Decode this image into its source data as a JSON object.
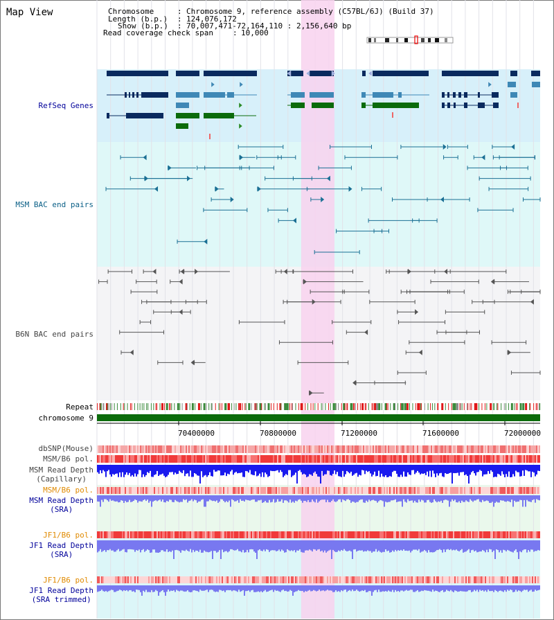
{
  "view_title": "Map View",
  "header": {
    "chromosome_key": "Chromosome",
    "chromosome_val": "Chromosome 9, reference assembly (C57BL/6J) (Build 37)",
    "length_key": "Length (b.p.)",
    "length_val": "124,076,172",
    "show_key": "Show (b.p.)",
    "show_val": "70,007,471-72,164,110 : 2,156,640 bp",
    "coverage_key": "Read coverage check span",
    "coverage_val": "10,000"
  },
  "tracks": {
    "refseq": "RefSeq Genes",
    "msm_bac": "MSM BAC end pairs",
    "b6n_bac": "B6N BAC end pairs",
    "repeat": "Repeat",
    "chromosome": "chromosome 9",
    "dbsnp": "dbSNP(Mouse)",
    "msm_b6_pol_1": "MSM/B6 pol.",
    "msm_depth_cap": "MSM Read Depth\n(Capillary)",
    "msm_b6_pol_2": "MSM/B6 pol.",
    "msm_depth_sra": "MSM Read Depth\n(SRA)",
    "jf1_b6_pol_1": "JF1/B6 pol.",
    "jf1_depth_sra": "JF1 Read Depth\n(SRA)",
    "jf1_b6_pol_2": "JF1/B6 pol.",
    "jf1_depth_trim": "JF1 Read Depth\n(SRA trimmed)"
  },
  "axis": {
    "ticks": [
      "70400000",
      "70800000",
      "71200000",
      "71600000",
      "72000000"
    ]
  },
  "colors": {
    "highlight": "#f8d2ee",
    "refseq_bg": "#d7f0fa",
    "msm_bg": "#dff8f8",
    "b6n_bg": "#f4f4f6",
    "gene_dark": "#0a2a5e",
    "gene_mid": "#3e88b6",
    "gene_green": "#0b6b0b",
    "msm_line": "#1a6f94",
    "b6n_line": "#555555",
    "repeat_red": "#e01818",
    "depth_blue": "#1a1aee",
    "sra_blue": "#7878f0",
    "label_blue": "#00009a",
    "label_orange": "#e08a00",
    "label_gray": "#444444",
    "label_msm": "#0a5f86"
  }
}
